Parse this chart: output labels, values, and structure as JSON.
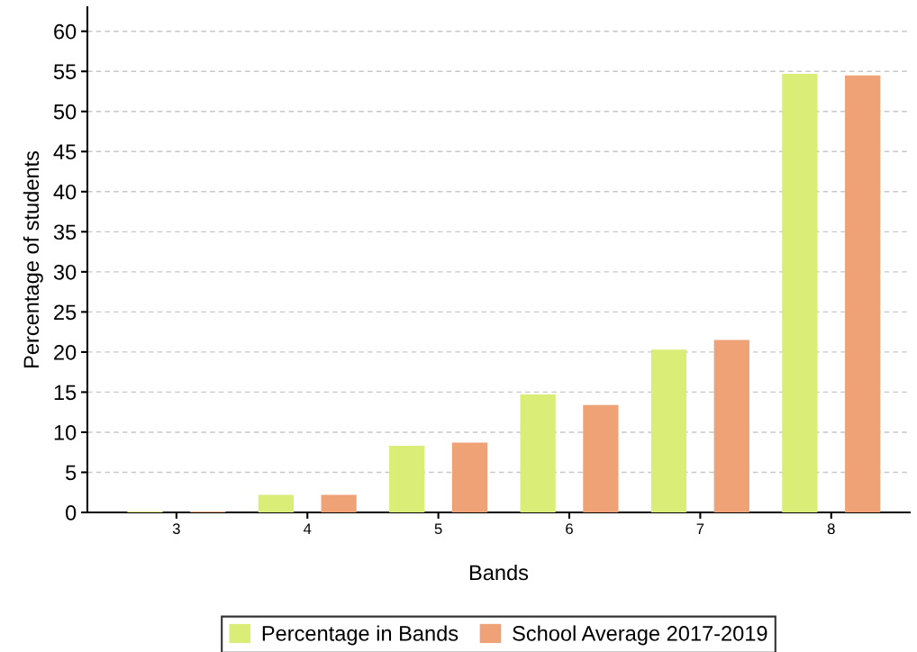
{
  "chart_data": {
    "type": "bar",
    "xlabel": "Bands",
    "ylabel": "Percentage of students",
    "categories": [
      "3",
      "4",
      "5",
      "6",
      "7",
      "8"
    ],
    "series": [
      {
        "name": "Percentage in Bands",
        "color": "#d9ed77",
        "values": [
          0.1,
          2.2,
          8.3,
          14.7,
          20.3,
          54.7
        ]
      },
      {
        "name": "School Average 2017-2019",
        "color": "#eea276",
        "values": [
          0.1,
          2.2,
          8.7,
          13.4,
          21.5,
          54.5
        ]
      }
    ],
    "ylim": [
      0,
      63
    ],
    "yticks": [
      0,
      5,
      10,
      15,
      20,
      25,
      30,
      35,
      40,
      45,
      50,
      55,
      60
    ],
    "grid": "y",
    "legend": "bottom"
  }
}
